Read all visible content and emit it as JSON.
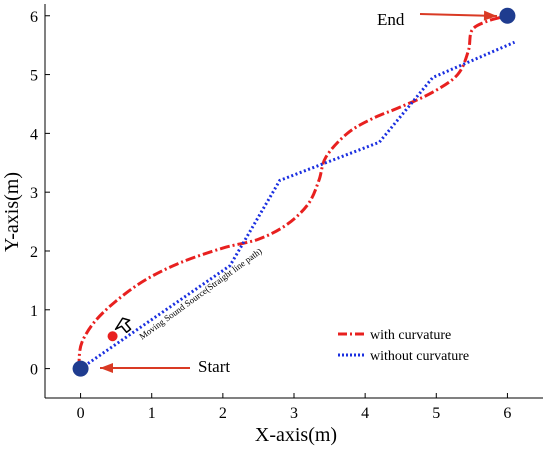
{
  "chart_data": {
    "type": "line",
    "xlabel": "X-axis(m)",
    "ylabel": "Y-axis(m)",
    "xlim": [
      -0.5,
      6.5
    ],
    "ylim": [
      -0.5,
      6.2
    ],
    "xticks": [
      0,
      1,
      2,
      3,
      4,
      5,
      6
    ],
    "yticks": [
      0,
      1,
      2,
      3,
      4,
      5,
      6
    ],
    "grid": false,
    "legend_position": "bottom-right",
    "series": [
      {
        "name": "with curvature",
        "color": "#e8201f",
        "style": "dash-dot",
        "points": [
          [
            0,
            0
          ],
          [
            -0.02,
            0.15
          ],
          [
            0.02,
            0.45
          ],
          [
            0.2,
            0.8
          ],
          [
            0.5,
            1.15
          ],
          [
            0.9,
            1.5
          ],
          [
            1.4,
            1.8
          ],
          [
            2.0,
            2.05
          ],
          [
            2.5,
            2.2
          ],
          [
            2.9,
            2.45
          ],
          [
            3.2,
            2.8
          ],
          [
            3.35,
            3.2
          ],
          [
            3.45,
            3.6
          ],
          [
            3.75,
            4.0
          ],
          [
            4.1,
            4.25
          ],
          [
            4.5,
            4.45
          ],
          [
            4.95,
            4.7
          ],
          [
            5.3,
            5.0
          ],
          [
            5.45,
            5.4
          ],
          [
            5.5,
            5.75
          ],
          [
            5.7,
            5.9
          ],
          [
            6.0,
            6.0
          ]
        ]
      },
      {
        "name": "without curvature",
        "color": "#1a2fe0",
        "style": "dotted",
        "points": [
          [
            0,
            0
          ],
          [
            2.1,
            1.75
          ],
          [
            2.8,
            3.2
          ],
          [
            4.2,
            3.85
          ],
          [
            4.95,
            4.95
          ],
          [
            6.1,
            5.55
          ]
        ]
      }
    ],
    "markers": [
      {
        "name": "start-marker",
        "x": 0,
        "y": 0,
        "color": "#1f3c8f"
      },
      {
        "name": "end-marker",
        "x": 6,
        "y": 6,
        "color": "#1f3c8f"
      },
      {
        "name": "sound-source-marker",
        "x": 0.45,
        "y": 0.55,
        "color": "#e8201f"
      }
    ],
    "annotations": {
      "start": "Start",
      "end": "End",
      "path_label": "Moving Sound Source(Straight line path)"
    }
  }
}
